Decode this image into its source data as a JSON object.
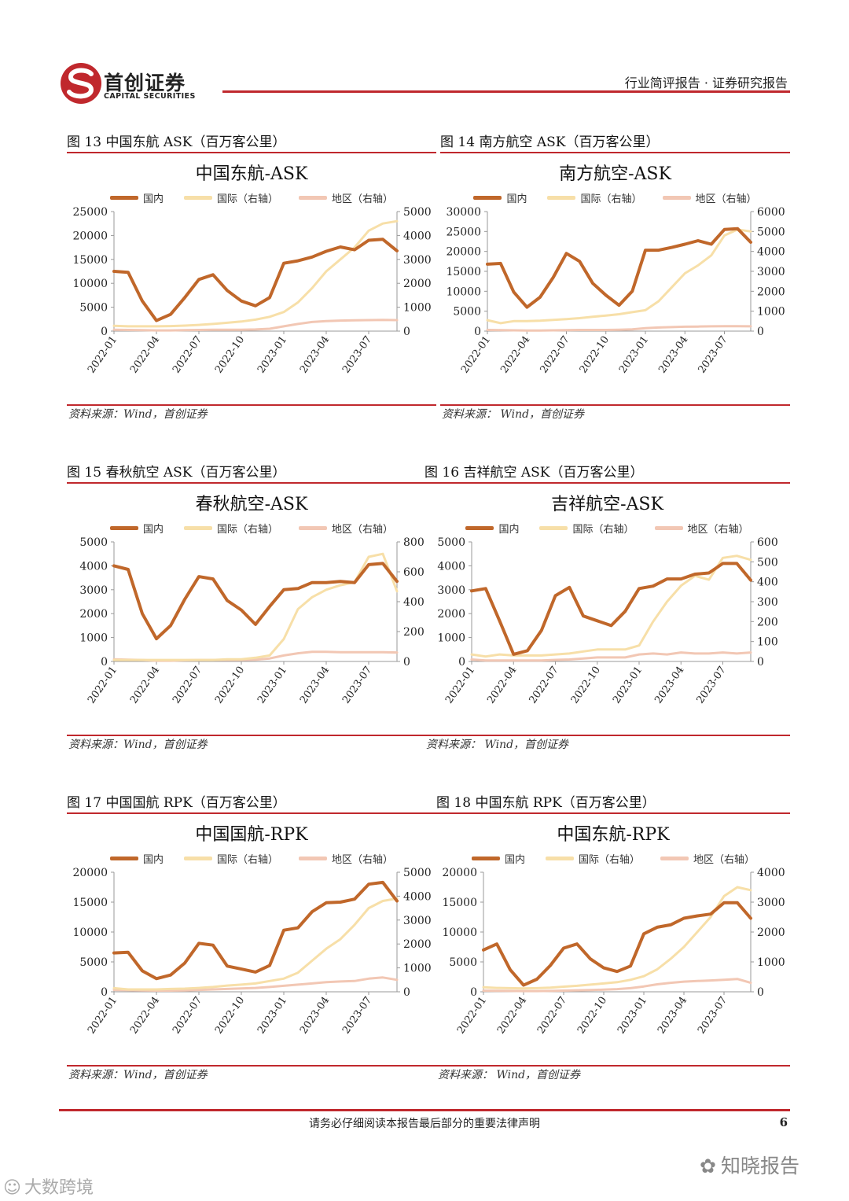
{
  "header": {
    "company": "首创证券",
    "company_en": "CAPITAL SECURITIES",
    "report_type": "行业简评报告 · 证券研究报告",
    "brand_color": "#c0282d"
  },
  "legend": {
    "domestic": "国内",
    "international": "国际（右轴）",
    "regional": "地区（右轴）"
  },
  "colors": {
    "domestic": "#c0672a",
    "international": "#f7dfa8",
    "regional": "#f2c7b4"
  },
  "footer": {
    "notice": "请务必仔细阅读本报告最后部分的重要法律声明",
    "page": "6"
  },
  "watermarks": {
    "right": "知晓报告",
    "left": "大数跨境"
  },
  "panels": [
    {
      "caption": "图  13  中国东航 ASK（百万客公里）",
      "source": "资料来源：Wind，首创证券"
    },
    {
      "caption": "图  14  南方航空 ASK（百万客公里）",
      "source": "资料来源：  Wind，首创证券"
    },
    {
      "caption": "图  15  春秋航空 ASK（百万客公里）",
      "source": "资料来源：Wind，首创证券"
    },
    {
      "caption": "图  16  吉祥航空 ASK（百万客公里）",
      "source": "资料来源：  Wind，首创证券"
    },
    {
      "caption": "图  17  中国国航 RPK（百万客公里）",
      "source": "资料来源：Wind，首创证券"
    },
    {
      "caption": "图  18  中国东航 RPK（百万客公里）",
      "source": "资料来源：  Wind，首创证券"
    }
  ],
  "chart_data": [
    {
      "type": "line",
      "title": "中国东航-ASK",
      "x": [
        "2022-01",
        "2022-02",
        "2022-03",
        "2022-04",
        "2022-05",
        "2022-06",
        "2022-07",
        "2022-08",
        "2022-09",
        "2022-10",
        "2022-11",
        "2022-12",
        "2023-01",
        "2023-02",
        "2023-03",
        "2023-04",
        "2023-05",
        "2023-06",
        "2023-07",
        "2023-08",
        "2023-09"
      ],
      "x_ticks": [
        "2022-01",
        "2022-04",
        "2022-07",
        "2022-10",
        "2023-01",
        "2023-04",
        "2023-07"
      ],
      "ylim": [
        0,
        25000
      ],
      "yticks": [
        0,
        5000,
        10000,
        15000,
        20000,
        25000
      ],
      "y2lim": [
        0,
        5000
      ],
      "y2ticks": [
        0,
        1000,
        2000,
        3000,
        4000,
        5000
      ],
      "series": [
        {
          "name": "国内",
          "axis": "left",
          "values": [
            12500,
            12300,
            6300,
            2200,
            3500,
            7000,
            10800,
            11800,
            8500,
            6300,
            5300,
            7000,
            14200,
            14700,
            15500,
            16700,
            17600,
            17000,
            19000,
            19200,
            16800
          ]
        },
        {
          "name": "国际（右轴）",
          "axis": "right",
          "values": [
            220,
            200,
            200,
            200,
            210,
            230,
            260,
            300,
            350,
            400,
            480,
            600,
            800,
            1200,
            1800,
            2500,
            3000,
            3500,
            4200,
            4500,
            4600
          ]
        },
        {
          "name": "地区（右轴）",
          "axis": "right",
          "values": [
            60,
            50,
            40,
            30,
            30,
            40,
            50,
            60,
            60,
            60,
            70,
            100,
            200,
            300,
            380,
            420,
            440,
            450,
            460,
            470,
            460
          ]
        }
      ]
    },
    {
      "type": "line",
      "title": "南方航空-ASK",
      "x": [
        "2022-01",
        "2022-02",
        "2022-03",
        "2022-04",
        "2022-05",
        "2022-06",
        "2022-07",
        "2022-08",
        "2022-09",
        "2022-10",
        "2022-11",
        "2022-12",
        "2023-01",
        "2023-02",
        "2023-03",
        "2023-04",
        "2023-05",
        "2023-06",
        "2023-07",
        "2023-08",
        "2023-09"
      ],
      "x_ticks": [
        "2022-01",
        "2022-04",
        "2022-07",
        "2022-10",
        "2023-01",
        "2023-04",
        "2023-07"
      ],
      "ylim": [
        0,
        30000
      ],
      "yticks": [
        0,
        5000,
        10000,
        15000,
        20000,
        25000,
        30000
      ],
      "y2lim": [
        0,
        6000
      ],
      "y2ticks": [
        0,
        1000,
        2000,
        3000,
        4000,
        5000,
        6000
      ],
      "series": [
        {
          "name": "国内",
          "axis": "left",
          "values": [
            16800,
            17000,
            9800,
            6000,
            8500,
            13500,
            19500,
            17500,
            12000,
            9000,
            6500,
            10000,
            20300,
            20300,
            21000,
            21800,
            22700,
            21800,
            25500,
            25700,
            22300
          ]
        },
        {
          "name": "国际（右轴）",
          "axis": "right",
          "values": [
            550,
            400,
            500,
            500,
            520,
            560,
            600,
            650,
            720,
            780,
            850,
            950,
            1050,
            1500,
            2200,
            2900,
            3300,
            3800,
            4800,
            5100,
            5000
          ]
        },
        {
          "name": "地区（右轴）",
          "axis": "right",
          "values": [
            60,
            50,
            40,
            30,
            30,
            40,
            50,
            60,
            60,
            60,
            70,
            90,
            150,
            180,
            200,
            220,
            230,
            240,
            250,
            250,
            240
          ]
        }
      ]
    },
    {
      "type": "line",
      "title": "春秋航空-ASK",
      "x": [
        "2022-01",
        "2022-02",
        "2022-03",
        "2022-04",
        "2022-05",
        "2022-06",
        "2022-07",
        "2022-08",
        "2022-09",
        "2022-10",
        "2022-11",
        "2022-12",
        "2023-01",
        "2023-02",
        "2023-03",
        "2023-04",
        "2023-05",
        "2023-06",
        "2023-07",
        "2023-08",
        "2023-09"
      ],
      "x_ticks": [
        "2022-01",
        "2022-04",
        "2022-07",
        "2022-10",
        "2023-01",
        "2023-04",
        "2023-07"
      ],
      "ylim": [
        0,
        5000
      ],
      "yticks": [
        0,
        1000,
        2000,
        3000,
        4000,
        5000
      ],
      "y2lim": [
        0,
        800
      ],
      "y2ticks": [
        0,
        200,
        400,
        600,
        800
      ],
      "series": [
        {
          "name": "国内",
          "axis": "left",
          "values": [
            4000,
            3850,
            2000,
            950,
            1500,
            2600,
            3550,
            3450,
            2550,
            2150,
            1550,
            2300,
            3000,
            3050,
            3300,
            3300,
            3350,
            3300,
            4050,
            4100,
            3350
          ]
        },
        {
          "name": "国际（右轴）",
          "axis": "right",
          "values": [
            10,
            10,
            10,
            10,
            10,
            10,
            10,
            10,
            15,
            15,
            25,
            40,
            150,
            350,
            430,
            480,
            510,
            530,
            700,
            720,
            470
          ]
        },
        {
          "name": "地区（右轴）",
          "axis": "right",
          "values": [
            15,
            12,
            10,
            5,
            5,
            8,
            10,
            10,
            10,
            10,
            12,
            20,
            40,
            55,
            65,
            65,
            62,
            62,
            62,
            62,
            60
          ]
        }
      ]
    },
    {
      "type": "line",
      "title": "吉祥航空-ASK",
      "x": [
        "2022-01",
        "2022-02",
        "2022-03",
        "2022-04",
        "2022-05",
        "2022-06",
        "2022-07",
        "2022-08",
        "2022-09",
        "2022-10",
        "2022-11",
        "2022-12",
        "2023-01",
        "2023-02",
        "2023-03",
        "2023-04",
        "2023-05",
        "2023-06",
        "2023-07",
        "2023-08",
        "2023-09"
      ],
      "x_ticks": [
        "2022-01",
        "2022-04",
        "2022-07",
        "2022-10",
        "2023-01",
        "2023-04",
        "2023-07"
      ],
      "ylim": [
        0,
        5000
      ],
      "yticks": [
        0,
        1000,
        2000,
        3000,
        4000,
        5000
      ],
      "y2lim": [
        0,
        600
      ],
      "y2ticks": [
        0,
        100,
        200,
        300,
        400,
        500,
        600
      ],
      "series": [
        {
          "name": "国内",
          "axis": "left",
          "values": [
            2950,
            3050,
            1700,
            300,
            450,
            1300,
            2750,
            3100,
            1900,
            1700,
            1500,
            2100,
            3050,
            3150,
            3450,
            3450,
            3650,
            3700,
            4100,
            4100,
            3400
          ]
        },
        {
          "name": "国际（右轴）",
          "axis": "right",
          "values": [
            35,
            25,
            35,
            30,
            30,
            30,
            35,
            40,
            50,
            60,
            60,
            60,
            80,
            200,
            300,
            380,
            430,
            410,
            520,
            530,
            510
          ]
        },
        {
          "name": "地区（右轴）",
          "axis": "right",
          "values": [
            10,
            5,
            5,
            5,
            5,
            5,
            8,
            10,
            15,
            20,
            20,
            20,
            35,
            40,
            35,
            45,
            40,
            40,
            45,
            40,
            45
          ]
        }
      ]
    },
    {
      "type": "line",
      "title": "中国国航-RPK",
      "x": [
        "2022-01",
        "2022-02",
        "2022-03",
        "2022-04",
        "2022-05",
        "2022-06",
        "2022-07",
        "2022-08",
        "2022-09",
        "2022-10",
        "2022-11",
        "2022-12",
        "2023-01",
        "2023-02",
        "2023-03",
        "2023-04",
        "2023-05",
        "2023-06",
        "2023-07",
        "2023-08",
        "2023-09"
      ],
      "x_ticks": [
        "2022-01",
        "2022-04",
        "2022-07",
        "2022-10",
        "2023-01",
        "2023-04",
        "2023-07"
      ],
      "ylim": [
        0,
        20000
      ],
      "yticks": [
        0,
        5000,
        10000,
        15000,
        20000
      ],
      "y2lim": [
        0,
        5000
      ],
      "y2ticks": [
        0,
        1000,
        2000,
        3000,
        4000,
        5000
      ],
      "series": [
        {
          "name": "国内",
          "axis": "left",
          "values": [
            6500,
            6600,
            3500,
            2200,
            2800,
            4800,
            8100,
            7800,
            4300,
            3800,
            3300,
            4400,
            10300,
            10700,
            13400,
            14900,
            15000,
            15500,
            18000,
            18300,
            15200
          ]
        },
        {
          "name": "国际（右轴）",
          "axis": "right",
          "values": [
            150,
            100,
            100,
            100,
            120,
            130,
            160,
            200,
            260,
            300,
            350,
            450,
            550,
            800,
            1300,
            1800,
            2200,
            2800,
            3500,
            3800,
            3900
          ]
        },
        {
          "name": "地区（右轴）",
          "axis": "right",
          "values": [
            80,
            70,
            60,
            50,
            50,
            60,
            80,
            100,
            120,
            140,
            160,
            200,
            250,
            300,
            350,
            400,
            430,
            450,
            550,
            600,
            500
          ]
        }
      ]
    },
    {
      "type": "line",
      "title": "中国东航-RPK",
      "x": [
        "2022-01",
        "2022-02",
        "2022-03",
        "2022-04",
        "2022-05",
        "2022-06",
        "2022-07",
        "2022-08",
        "2022-09",
        "2022-10",
        "2022-11",
        "2022-12",
        "2023-01",
        "2023-02",
        "2023-03",
        "2023-04",
        "2023-05",
        "2023-06",
        "2023-07",
        "2023-08",
        "2023-09"
      ],
      "x_ticks": [
        "2022-01",
        "2022-04",
        "2022-07",
        "2022-10",
        "2023-01",
        "2023-04",
        "2023-07"
      ],
      "ylim": [
        0,
        20000
      ],
      "yticks": [
        0,
        5000,
        10000,
        15000,
        20000
      ],
      "y2lim": [
        0,
        4000
      ],
      "y2ticks": [
        0,
        1000,
        2000,
        3000,
        4000
      ],
      "series": [
        {
          "name": "国内",
          "axis": "left",
          "values": [
            7000,
            8000,
            3700,
            1100,
            2100,
            4400,
            7300,
            8000,
            5500,
            4000,
            3400,
            4300,
            9700,
            10800,
            11200,
            12300,
            12700,
            13000,
            14900,
            14900,
            12300
          ]
        },
        {
          "name": "国际（右轴）",
          "axis": "right",
          "values": [
            150,
            130,
            120,
            110,
            120,
            140,
            170,
            200,
            240,
            280,
            320,
            400,
            520,
            750,
            1100,
            1500,
            2000,
            2500,
            3200,
            3500,
            3400
          ]
        },
        {
          "name": "地区（右轴）",
          "axis": "right",
          "values": [
            40,
            35,
            30,
            25,
            25,
            30,
            40,
            50,
            60,
            70,
            90,
            120,
            180,
            250,
            300,
            340,
            360,
            380,
            400,
            430,
            300
          ]
        }
      ]
    }
  ]
}
